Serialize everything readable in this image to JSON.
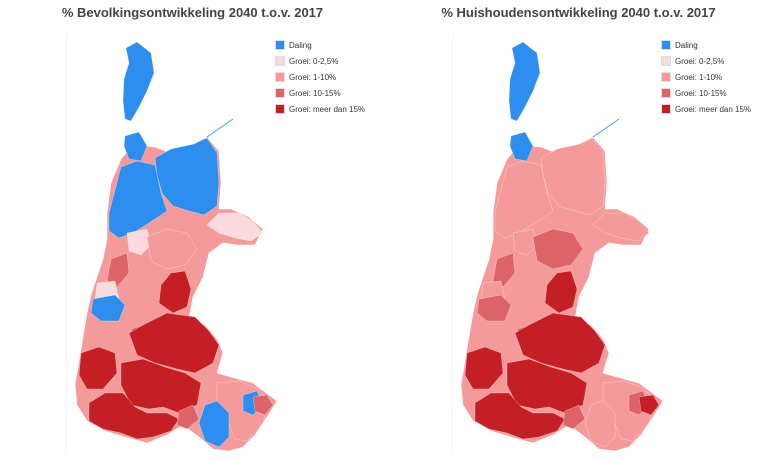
{
  "colors": {
    "decline": "#2c8ff0",
    "growth_0_2_5": "#fadadd",
    "growth_1_10": "#f49a9b",
    "growth_10_15": "#dc6468",
    "growth_15_plus": "#c41f24"
  },
  "legend": [
    {
      "label": "Daling",
      "color": "#2c8ff0"
    },
    {
      "label": "Groei: 0-2,5%",
      "color": "#fadadd"
    },
    {
      "label": "Groei: 1-10%",
      "color": "#f49a9b"
    },
    {
      "label": "Groei: 10-15%",
      "color": "#dc6468"
    },
    {
      "label": "Groei: meer dan 15%",
      "color": "#c41f24"
    }
  ],
  "maps": [
    {
      "title": "% Bevolkingsontwikkeling 2040 t.o.v. 2017",
      "base": "#f49a9b",
      "regions": {
        "texel": "#2c8ff0",
        "den-helder": "#2c8ff0",
        "north-east": "#2c8ff0",
        "north-center": "#2c8ff0",
        "west-friesland": "#fadadd",
        "enkhuizen": "#fadadd",
        "north-coast-mid": "#f49a9b",
        "mid-west": "#dc6468",
        "alkmaar": "#c41f24",
        "west-coast-a": "#fadadd",
        "west-coast-b": "#2c8ff0",
        "zaanstreek": "#c41f24",
        "haarlem": "#c41f24",
        "amsterdam": "#c41f24",
        "haarlemmermeer": "#c41f24",
        "amstelveen": "#dc6468",
        "gooi": "#f49a9b",
        "hilversum": "#2c8ff0",
        "huizen": "#2c8ff0",
        "laren": "#dc6468",
        "waterland": "#dc6468"
      }
    },
    {
      "title": "% Huishoudensontwikkeling 2040 t.o.v. 2017",
      "base": "#f49a9b",
      "regions": {
        "texel": "#2c8ff0",
        "den-helder": "#2c8ff0",
        "north-east": "#f49a9b",
        "north-center": "#f49a9b",
        "west-friesland": "#f49a9b",
        "enkhuizen": "#f49a9b",
        "north-coast-mid": "#dc6468",
        "mid-west": "#dc6468",
        "alkmaar": "#c41f24",
        "west-coast-a": "#f49a9b",
        "west-coast-b": "#dc6468",
        "zaanstreek": "#c41f24",
        "haarlem": "#c41f24",
        "amsterdam": "#c41f24",
        "haarlemmermeer": "#c41f24",
        "amstelveen": "#dc6468",
        "gooi": "#f49a9b",
        "hilversum": "#f49a9b",
        "huizen": "#dc6468",
        "laren": "#c41f24",
        "waterland": "#dc6468"
      }
    }
  ]
}
